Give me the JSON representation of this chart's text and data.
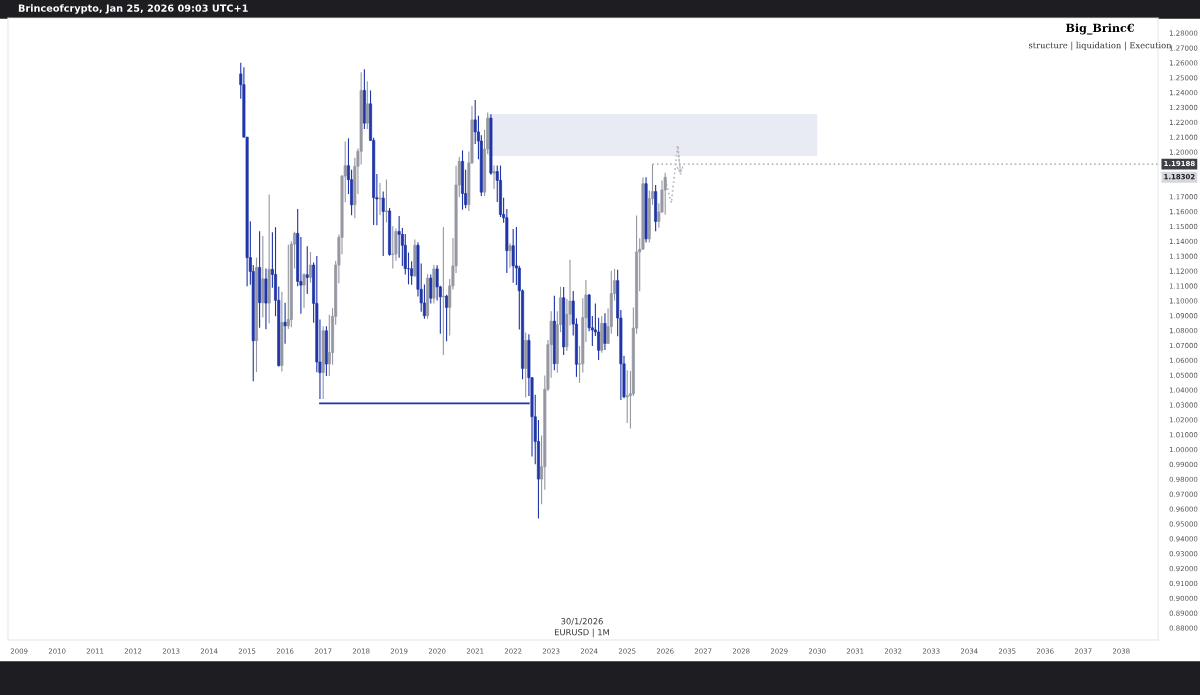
{
  "chart_data": {
    "type": "candlestick",
    "title": "Brinceofcrypto, Jan 25, 2026 09:03 UTC+1",
    "annotations": [
      "Big_Brinc€",
      "structure | liquidation | Execution",
      "30/1/2026",
      "EURUSD | 1M",
      "1.19188",
      "1.18302"
    ],
    "x": [
      "2014-11",
      "2014-12",
      "2015-01",
      "2015-02",
      "2015-03",
      "2015-04",
      "2015-05",
      "2015-06",
      "2015-07",
      "2015-08",
      "2015-09",
      "2015-10",
      "2015-11",
      "2015-12",
      "2016-01",
      "2016-02",
      "2016-03",
      "2016-04",
      "2016-05",
      "2016-06",
      "2016-07",
      "2016-08",
      "2016-09",
      "2016-10",
      "2016-11",
      "2016-12",
      "2017-01",
      "2017-02",
      "2017-03",
      "2017-04",
      "2017-05",
      "2017-06",
      "2017-07",
      "2017-08",
      "2017-09",
      "2017-10",
      "2017-11",
      "2017-12",
      "2018-01",
      "2018-02",
      "2018-03",
      "2018-04",
      "2018-05",
      "2018-06",
      "2018-07",
      "2018-08",
      "2018-09",
      "2018-10",
      "2018-11",
      "2018-12",
      "2019-01",
      "2019-02",
      "2019-03",
      "2019-04",
      "2019-05",
      "2019-06",
      "2019-07",
      "2019-08",
      "2019-09",
      "2019-10",
      "2019-11",
      "2019-12",
      "2020-01",
      "2020-02",
      "2020-03",
      "2020-04",
      "2020-05",
      "2020-06",
      "2020-07",
      "2020-08",
      "2020-09",
      "2020-10",
      "2020-11",
      "2020-12",
      "2021-01",
      "2021-02",
      "2021-03",
      "2021-04",
      "2021-05",
      "2021-06",
      "2021-07",
      "2021-08",
      "2021-09",
      "2021-10",
      "2021-11",
      "2021-12",
      "2022-01",
      "2022-02",
      "2022-03",
      "2022-04",
      "2022-05",
      "2022-06",
      "2022-07",
      "2022-08",
      "2022-09",
      "2022-10",
      "2022-11",
      "2022-12",
      "2023-01",
      "2023-02",
      "2023-03",
      "2023-04",
      "2023-05",
      "2023-06",
      "2023-07",
      "2023-08",
      "2023-09",
      "2023-10",
      "2023-11",
      "2023-12",
      "2024-01",
      "2024-02",
      "2024-03",
      "2024-04",
      "2024-05",
      "2024-06",
      "2024-07",
      "2024-08",
      "2024-09",
      "2024-10",
      "2024-11",
      "2024-12",
      "2025-01",
      "2025-02",
      "2025-03",
      "2025-04",
      "2025-05",
      "2025-06",
      "2025-07",
      "2025-08",
      "2025-09",
      "2025-10",
      "2025-11",
      "2025-12",
      "2026-01"
    ],
    "ohlc": [
      [
        1.2525,
        1.26,
        1.2358,
        1.2453
      ],
      [
        1.2453,
        1.257,
        1.2098,
        1.21
      ],
      [
        1.21,
        1.21,
        1.1098,
        1.129
      ],
      [
        1.129,
        1.1534,
        1.1107,
        1.1197
      ],
      [
        1.1197,
        1.124,
        1.0458,
        1.0731
      ],
      [
        1.0731,
        1.129,
        1.052,
        1.1224
      ],
      [
        1.1224,
        1.1467,
        1.0819,
        1.0987
      ],
      [
        1.0987,
        1.1436,
        1.0887,
        1.1147
      ],
      [
        1.1147,
        1.1216,
        1.0809,
        1.0984
      ],
      [
        1.0984,
        1.1714,
        1.0848,
        1.1211
      ],
      [
        1.1211,
        1.146,
        1.1087,
        1.1177
      ],
      [
        1.1177,
        1.1495,
        1.0896,
        1.1003
      ],
      [
        1.1003,
        1.1095,
        1.0558,
        1.0564
      ],
      [
        1.0564,
        1.106,
        1.0524,
        1.0855
      ],
      [
        1.0855,
        1.0986,
        1.071,
        1.0831
      ],
      [
        1.0831,
        1.1376,
        1.081,
        1.0874
      ],
      [
        1.0874,
        1.14,
        1.0822,
        1.138
      ],
      [
        1.138,
        1.1464,
        1.1217,
        1.1453
      ],
      [
        1.1453,
        1.1616,
        1.1098,
        1.113
      ],
      [
        1.113,
        1.1428,
        1.0912,
        1.1105
      ],
      [
        1.1105,
        1.1186,
        1.0952,
        1.1175
      ],
      [
        1.1175,
        1.1366,
        1.1045,
        1.1157
      ],
      [
        1.1157,
        1.1327,
        1.1122,
        1.124
      ],
      [
        1.124,
        1.1257,
        1.0852,
        1.0982
      ],
      [
        1.0982,
        1.13,
        1.0519,
        1.0588
      ],
      [
        1.0588,
        1.0874,
        1.034,
        1.0517
      ],
      [
        1.0517,
        1.0829,
        1.034,
        1.0798
      ],
      [
        1.0798,
        1.0829,
        1.0494,
        1.0575
      ],
      [
        1.0575,
        1.0906,
        1.0494,
        1.0652
      ],
      [
        1.0652,
        1.095,
        1.057,
        1.0895
      ],
      [
        1.0895,
        1.1268,
        1.0838,
        1.124
      ],
      [
        1.124,
        1.1445,
        1.1118,
        1.1426
      ],
      [
        1.1426,
        1.1845,
        1.1312,
        1.1838
      ],
      [
        1.1838,
        1.207,
        1.1662,
        1.1908
      ],
      [
        1.1908,
        1.2092,
        1.1717,
        1.1814
      ],
      [
        1.1814,
        1.188,
        1.1574,
        1.1645
      ],
      [
        1.1645,
        1.1961,
        1.1554,
        1.1904
      ],
      [
        1.1904,
        1.2023,
        1.1717,
        1.2005
      ],
      [
        1.2005,
        1.2537,
        1.1916,
        1.2414
      ],
      [
        1.2414,
        1.2556,
        1.2154,
        1.2194
      ],
      [
        1.2194,
        1.2476,
        1.2155,
        1.2324
      ],
      [
        1.2324,
        1.2414,
        1.2076,
        1.2078
      ],
      [
        1.2078,
        1.2096,
        1.151,
        1.1693
      ],
      [
        1.1693,
        1.1852,
        1.1508,
        1.1684
      ],
      [
        1.1684,
        1.1791,
        1.1576,
        1.169
      ],
      [
        1.169,
        1.1734,
        1.1301,
        1.16
      ],
      [
        1.16,
        1.1815,
        1.1526,
        1.1604
      ],
      [
        1.1604,
        1.1624,
        1.1302,
        1.1311
      ],
      [
        1.1311,
        1.15,
        1.1216,
        1.1314
      ],
      [
        1.1314,
        1.1486,
        1.1269,
        1.1466
      ],
      [
        1.1466,
        1.157,
        1.1289,
        1.1446
      ],
      [
        1.1446,
        1.1489,
        1.1234,
        1.1373
      ],
      [
        1.1373,
        1.1448,
        1.1176,
        1.1216
      ],
      [
        1.1216,
        1.1324,
        1.111,
        1.1215
      ],
      [
        1.1215,
        1.1265,
        1.1107,
        1.1168
      ],
      [
        1.1168,
        1.1412,
        1.116,
        1.1373
      ],
      [
        1.1373,
        1.1393,
        1.1028,
        1.1077
      ],
      [
        1.1077,
        1.125,
        1.0926,
        1.0985
      ],
      [
        1.0985,
        1.1109,
        1.0879,
        1.0899
      ],
      [
        1.0899,
        1.1179,
        1.0879,
        1.1152
      ],
      [
        1.1152,
        1.1176,
        1.0981,
        1.1017
      ],
      [
        1.1017,
        1.124,
        1.0981,
        1.1214
      ],
      [
        1.1214,
        1.1239,
        1.1002,
        1.1093
      ],
      [
        1.1093,
        1.11,
        1.0778,
        1.1026
      ],
      [
        1.1026,
        1.1495,
        1.0636,
        1.1031
      ],
      [
        1.1031,
        1.104,
        1.0727,
        1.0955
      ],
      [
        1.0955,
        1.1147,
        1.0767,
        1.11
      ],
      [
        1.11,
        1.1422,
        1.1075,
        1.1234
      ],
      [
        1.1234,
        1.1908,
        1.1186,
        1.1778
      ],
      [
        1.1778,
        1.1966,
        1.1696,
        1.1937
      ],
      [
        1.1937,
        1.2011,
        1.1612,
        1.1721
      ],
      [
        1.1721,
        1.188,
        1.1622,
        1.1646
      ],
      [
        1.1646,
        1.2004,
        1.1603,
        1.1927
      ],
      [
        1.1927,
        1.231,
        1.192,
        1.2216
      ],
      [
        1.2216,
        1.2349,
        1.2054,
        1.2135
      ],
      [
        1.2135,
        1.2243,
        1.1952,
        1.2074
      ],
      [
        1.2074,
        1.2113,
        1.1704,
        1.173
      ],
      [
        1.173,
        1.215,
        1.1704,
        1.202
      ],
      [
        1.202,
        1.2266,
        1.1986,
        1.2228
      ],
      [
        1.2228,
        1.2254,
        1.1847,
        1.1858
      ],
      [
        1.1858,
        1.1909,
        1.1752,
        1.1869
      ],
      [
        1.1869,
        1.1909,
        1.1664,
        1.1809
      ],
      [
        1.1809,
        1.1909,
        1.1563,
        1.158
      ],
      [
        1.158,
        1.1692,
        1.1524,
        1.1558
      ],
      [
        1.1558,
        1.1616,
        1.1186,
        1.1337
      ],
      [
        1.1337,
        1.1386,
        1.1222,
        1.137
      ],
      [
        1.137,
        1.1483,
        1.1121,
        1.1235
      ],
      [
        1.1235,
        1.1495,
        1.1106,
        1.122
      ],
      [
        1.122,
        1.1235,
        1.0806,
        1.1067
      ],
      [
        1.1067,
        1.1076,
        1.0472,
        1.0545
      ],
      [
        1.0545,
        1.0787,
        1.0349,
        1.0733
      ],
      [
        1.0733,
        1.0774,
        1.0359,
        1.0483
      ],
      [
        1.0483,
        1.0486,
        0.9952,
        1.022
      ],
      [
        1.022,
        1.0368,
        0.9901,
        1.0054
      ],
      [
        1.0054,
        1.0198,
        0.9536,
        0.9801
      ],
      [
        0.9801,
        1.0094,
        0.9632,
        0.9884
      ],
      [
        0.9884,
        1.0497,
        0.973,
        1.0405
      ],
      [
        1.0405,
        1.0736,
        1.0393,
        1.0705
      ],
      [
        1.0705,
        1.0929,
        1.0483,
        1.0863
      ],
      [
        1.0863,
        1.1033,
        1.0533,
        1.0577
      ],
      [
        1.0577,
        1.093,
        1.0516,
        1.0839
      ],
      [
        1.0839,
        1.1095,
        1.0788,
        1.102
      ],
      [
        1.102,
        1.1092,
        1.0635,
        1.069
      ],
      [
        1.069,
        1.1012,
        1.0662,
        1.091
      ],
      [
        1.091,
        1.1276,
        1.0834,
        1.0998
      ],
      [
        1.0998,
        1.1065,
        1.0766,
        1.0843
      ],
      [
        1.0843,
        1.0882,
        1.0488,
        1.0573
      ],
      [
        1.0573,
        1.0695,
        1.0448,
        1.0576
      ],
      [
        1.0576,
        1.1017,
        1.0517,
        1.0886
      ],
      [
        1.0886,
        1.114,
        1.0723,
        1.1039
      ],
      [
        1.1039,
        1.1046,
        1.0795,
        1.0818
      ],
      [
        1.0818,
        1.0897,
        1.0695,
        1.0804
      ],
      [
        1.0804,
        1.0981,
        1.0763,
        1.079
      ],
      [
        1.079,
        1.0885,
        1.0601,
        1.0667
      ],
      [
        1.0667,
        1.0895,
        1.065,
        1.0848
      ],
      [
        1.0848,
        1.0916,
        1.0668,
        1.0713
      ],
      [
        1.0713,
        1.0948,
        1.0709,
        1.0826
      ],
      [
        1.0826,
        1.1202,
        1.0778,
        1.1048
      ],
      [
        1.1048,
        1.1214,
        1.1001,
        1.1135
      ],
      [
        1.1135,
        1.1209,
        1.0761,
        1.0884
      ],
      [
        1.0884,
        1.0937,
        1.0332,
        1.0576
      ],
      [
        1.0576,
        1.063,
        1.0344,
        1.0354
      ],
      [
        1.0354,
        1.0533,
        1.0178,
        1.0362
      ],
      [
        1.0362,
        1.0528,
        1.0141,
        1.0375
      ],
      [
        1.0375,
        1.0955,
        1.036,
        1.0816
      ],
      [
        1.0816,
        1.1573,
        1.0778,
        1.1328
      ],
      [
        1.1328,
        1.142,
        1.1064,
        1.1346
      ],
      [
        1.1346,
        1.1829,
        1.1346,
        1.1787
      ],
      [
        1.1787,
        1.183,
        1.1391,
        1.1416
      ],
      [
        1.1416,
        1.1742,
        1.1392,
        1.1687
      ],
      [
        1.1687,
        1.1918,
        1.1645,
        1.1734
      ],
      [
        1.1734,
        1.1778,
        1.1468,
        1.1533
      ],
      [
        1.1533,
        1.1655,
        1.1491,
        1.1597
      ],
      [
        1.1597,
        1.1808,
        1.159,
        1.1745
      ],
      [
        1.1745,
        1.186,
        1.1578,
        1.18302
      ]
    ],
    "colors": [
      "#1f35a8",
      "#1f35a8",
      "#1f35a8",
      "#1f35a8",
      "#1f35a8",
      "#9598a1",
      "#1f35a8",
      "#9598a1",
      "#1f35a8",
      "#9598a1",
      "#1f35a8",
      "#1f35a8",
      "#1f35a8",
      "#9598a1",
      "#1f35a8",
      "#9598a1",
      "#9598a1",
      "#9598a1",
      "#1f35a8",
      "#1f35a8",
      "#9598a1",
      "#1f35a8",
      "#9598a1",
      "#1f35a8",
      "#1f35a8",
      "#1f35a8",
      "#9598a1",
      "#1f35a8",
      "#9598a1",
      "#9598a1",
      "#9598a1",
      "#9598a1",
      "#9598a1",
      "#9598a1",
      "#1f35a8",
      "#1f35a8",
      "#9598a1",
      "#9598a1",
      "#9598a1",
      "#1f35a8",
      "#9598a1",
      "#1f35a8",
      "#1f35a8",
      "#1f35a8",
      "#9598a1",
      "#1f35a8",
      "#9598a1",
      "#1f35a8",
      "#9598a1",
      "#9598a1",
      "#1f35a8",
      "#1f35a8",
      "#1f35a8",
      "#1f35a8",
      "#1f35a8",
      "#9598a1",
      "#1f35a8",
      "#1f35a8",
      "#1f35a8",
      "#9598a1",
      "#1f35a8",
      "#9598a1",
      "#1f35a8",
      "#1f35a8",
      "#9598a1",
      "#1f35a8",
      "#9598a1",
      "#9598a1",
      "#9598a1",
      "#9598a1",
      "#1f35a8",
      "#1f35a8",
      "#9598a1",
      "#9598a1",
      "#1f35a8",
      "#1f35a8",
      "#1f35a8",
      "#9598a1",
      "#9598a1",
      "#1f35a8",
      "#9598a1",
      "#1f35a8",
      "#1f35a8",
      "#1f35a8",
      "#1f35a8",
      "#9598a1",
      "#1f35a8",
      "#1f35a8",
      "#1f35a8",
      "#1f35a8",
      "#9598a1",
      "#1f35a8",
      "#1f35a8",
      "#1f35a8",
      "#1f35a8",
      "#9598a1",
      "#9598a1",
      "#9598a1",
      "#9598a1",
      "#1f35a8",
      "#9598a1",
      "#9598a1",
      "#1f35a8",
      "#9598a1",
      "#9598a1",
      "#1f35a8",
      "#1f35a8",
      "#9598a1",
      "#9598a1",
      "#9598a1",
      "#1f35a8",
      "#1f35a8",
      "#1f35a8",
      "#1f35a8",
      "#9598a1",
      "#1f35a8",
      "#9598a1",
      "#9598a1",
      "#9598a1",
      "#1f35a8",
      "#1f35a8",
      "#1f35a8",
      "#9598a1",
      "#9598a1",
      "#9598a1",
      "#9598a1",
      "#9598a1",
      "#9598a1",
      "#1f35a8",
      "#9598a1",
      "#9598a1",
      "#1f35a8",
      "#9598a1",
      "#9598a1",
      "#9598a1"
    ],
    "series": [
      {
        "type": "line",
        "color": "#e8eaf4",
        "x": [
          "2021-05",
          "2030-01"
        ],
        "values": [
          null,
          null
        ],
        "lower": [
          1.1973,
          1.1973
        ],
        "upper": [
          1.2255,
          1.2255
        ]
      },
      {
        "type": "line",
        "color": "#1f35a8",
        "line_style": "solid",
        "x": [
          "2016-12",
          "2022-06"
        ],
        "values": [
          1.031,
          1.031
        ]
      },
      {
        "type": "line",
        "color": "#b8bac2",
        "line_style": "dotted",
        "x": [
          "2025-09",
          "2038-12-20"
        ],
        "values": [
          1.19188,
          1.19188
        ]
      },
      {
        "type": "line",
        "color": "#b8bac2",
        "line_style": "dotted",
        "x": [
          "2026-01",
          "2026-03",
          "2026-05",
          "2026-06"
        ],
        "values": [
          1.1813,
          1.1657,
          1.2047,
          1.1832
        ]
      }
    ],
    "xlim": [
      "2008-09-16",
      "2038-12-20"
    ],
    "xticks": [
      "2009",
      "2010",
      "2011",
      "2012",
      "2013",
      "2014",
      "2015",
      "2016",
      "2017",
      "2018",
      "2019",
      "2020",
      "2021",
      "2022",
      "2023",
      "2024",
      "2025",
      "2026",
      "2027",
      "2028",
      "2029",
      "2030",
      "2031",
      "2032",
      "2033",
      "2034",
      "2035",
      "2036",
      "2037",
      "2038"
    ],
    "ylim": [
      0.8719,
      1.2901
    ],
    "yticks": [
      {
        "value": 0.88,
        "label": "0.88000"
      },
      {
        "value": 0.89,
        "label": "0.89000"
      },
      {
        "value": 0.9,
        "label": "0.90000"
      },
      {
        "value": 0.91,
        "label": "0.91000"
      },
      {
        "value": 0.92,
        "label": "0.92000"
      },
      {
        "value": 0.93,
        "label": "0.93000"
      },
      {
        "value": 0.94,
        "label": "0.94000"
      },
      {
        "value": 0.95,
        "label": "0.95000"
      },
      {
        "value": 0.96,
        "label": "0.96000"
      },
      {
        "value": 0.97,
        "label": "0.97000"
      },
      {
        "value": 0.98,
        "label": "0.98000"
      },
      {
        "value": 0.99,
        "label": "0.99000"
      },
      {
        "value": 1.0,
        "label": "1.00000"
      },
      {
        "value": 1.01,
        "label": "1.01000"
      },
      {
        "value": 1.02,
        "label": "1.02000"
      },
      {
        "value": 1.03,
        "label": "1.03000"
      },
      {
        "value": 1.04,
        "label": "1.04000"
      },
      {
        "value": 1.05,
        "label": "1.05000"
      },
      {
        "value": 1.06,
        "label": "1.06000"
      },
      {
        "value": 1.07,
        "label": "1.07000"
      },
      {
        "value": 1.08,
        "label": "1.08000"
      },
      {
        "value": 1.09,
        "label": "1.09000"
      },
      {
        "value": 1.1,
        "label": "1.10000"
      },
      {
        "value": 1.11,
        "label": "1.11000"
      },
      {
        "value": 1.12,
        "label": "1.12000"
      },
      {
        "value": 1.13,
        "label": "1.13000"
      },
      {
        "value": 1.14,
        "label": "1.14000"
      },
      {
        "value": 1.15,
        "label": "1.15000"
      },
      {
        "value": 1.16,
        "label": "1.16000"
      },
      {
        "value": 1.17,
        "label": "1.17000"
      },
      {
        "value": 1.2,
        "label": "1.20000"
      },
      {
        "value": 1.21,
        "label": "1.21000"
      },
      {
        "value": 1.22,
        "label": "1.22000"
      },
      {
        "value": 1.23,
        "label": "1.23000"
      },
      {
        "value": 1.24,
        "label": "1.24000"
      },
      {
        "value": 1.25,
        "label": "1.25000"
      },
      {
        "value": 1.26,
        "label": "1.26000"
      },
      {
        "value": 1.27,
        "label": "1.27000"
      },
      {
        "value": 1.28,
        "label": "1.28000"
      }
    ]
  }
}
